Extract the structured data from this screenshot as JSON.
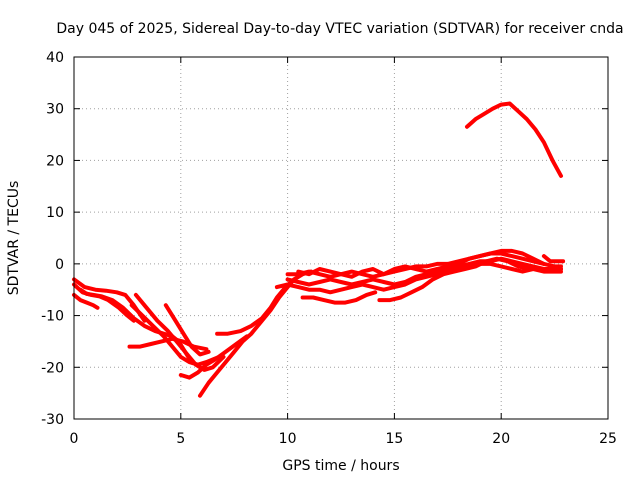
{
  "chart_data": {
    "type": "line",
    "title": "Day 045 of 2025, Sidereal Day-to-day VTEC variation (SDTVAR) for receiver cnda",
    "xlabel": "GPS time / hours",
    "ylabel": "SDTVAR / TECUs",
    "xlim": [
      0,
      25
    ],
    "ylim": [
      -30,
      40
    ],
    "xticks": [
      0,
      5,
      10,
      15,
      20,
      25
    ],
    "yticks": [
      -30,
      -20,
      -10,
      0,
      10,
      20,
      30,
      40
    ],
    "grid": true,
    "line_color": "#ff0000",
    "series": [
      {
        "name": "trace-a",
        "x": [
          0,
          0.5,
          1,
          1.5,
          2,
          2.4,
          2.8,
          3.3
        ],
        "y": [
          -3,
          -4.5,
          -5,
          -5.2,
          -5.5,
          -6,
          -8,
          -11
        ]
      },
      {
        "name": "trace-b",
        "x": [
          0,
          0.4,
          0.8,
          1.2,
          1.6,
          2.1,
          2.5,
          2.8
        ],
        "y": [
          -4,
          -5.5,
          -6,
          -6.3,
          -7,
          -8.5,
          -10,
          -11
        ]
      },
      {
        "name": "trace-c",
        "x": [
          0,
          0.3,
          0.6,
          0.9,
          1.1
        ],
        "y": [
          -6,
          -7,
          -7.5,
          -8,
          -8.5
        ]
      },
      {
        "name": "trace-d",
        "x": [
          0.3,
          0.6,
          0.9,
          1.3,
          1.8,
          2.3,
          2.8,
          3.3,
          3.8,
          4.2,
          4.6,
          4.9,
          5.2,
          5.5
        ],
        "y": [
          -5,
          -5.8,
          -6,
          -6.3,
          -7,
          -8.5,
          -10.5,
          -12,
          -13,
          -13.5,
          -14,
          -15,
          -17,
          -19
        ]
      },
      {
        "name": "trace-e",
        "x": [
          2.9,
          3.4,
          3.9,
          4.4,
          4.9,
          5.3,
          5.7,
          6.1,
          6.5,
          7.0
        ],
        "y": [
          -6,
          -8.5,
          -11,
          -13,
          -15.5,
          -17.5,
          -19.5,
          -20.5,
          -20,
          -18
        ]
      },
      {
        "name": "trace-f",
        "x": [
          2.7,
          3.2,
          3.7,
          4.2,
          4.6,
          5.0,
          5.4,
          5.8,
          6.2,
          6.8
        ],
        "y": [
          -8,
          -10,
          -12,
          -14,
          -16,
          -18,
          -19,
          -19.5,
          -19,
          -18
        ]
      },
      {
        "name": "trace-g",
        "x": [
          2.6,
          3.1,
          3.6,
          4.1,
          4.6,
          5.1,
          5.6,
          6.2
        ],
        "y": [
          -16,
          -16,
          -15.5,
          -15,
          -14.5,
          -15,
          -16,
          -16.5
        ]
      },
      {
        "name": "trace-h",
        "x": [
          4.3,
          4.6,
          4.9,
          5.2,
          5.5,
          5.9,
          6.3
        ],
        "y": [
          -8,
          -10,
          -12,
          -14,
          -16,
          -17.5,
          -17
        ]
      },
      {
        "name": "trace-i",
        "x": [
          5.0,
          5.4,
          5.8,
          6.2,
          6.6,
          7.1,
          7.6,
          8.1
        ],
        "y": [
          -21.5,
          -22,
          -21,
          -19.5,
          -18.5,
          -17,
          -15.5,
          -14
        ]
      },
      {
        "name": "trace-j",
        "x": [
          5.9,
          6.3,
          6.7,
          7.1,
          7.5,
          7.9,
          8.3,
          8.7,
          9.2,
          9.6,
          10.0,
          10.3,
          10.7
        ],
        "y": [
          -25.5,
          -23,
          -21,
          -19,
          -17,
          -15,
          -13.5,
          -11.5,
          -9,
          -6.5,
          -4.5,
          -3,
          -2
        ]
      },
      {
        "name": "trace-k",
        "x": [
          6.7,
          7.2,
          7.8,
          8.3,
          8.8,
          9.2,
          9.5,
          9.9,
          10.3,
          10.7,
          11.1
        ],
        "y": [
          -13.5,
          -13.5,
          -13,
          -12,
          -10.5,
          -8.5,
          -6.5,
          -4.5,
          -3,
          -2,
          -1.5
        ]
      },
      {
        "name": "trace-l",
        "x": [
          10.7,
          11.2,
          11.7,
          12.2,
          12.7,
          13.2,
          13.7,
          14.1
        ],
        "y": [
          -6.5,
          -6.5,
          -7,
          -7.5,
          -7.5,
          -7,
          -6,
          -5.5
        ]
      },
      {
        "name": "trace-m",
        "x": [
          10.0,
          10.5,
          11.0,
          11.5,
          12.0,
          12.5,
          13.0,
          13.5,
          14.0,
          14.5,
          15.0,
          15.5,
          16.0,
          16.5,
          17.0,
          17.5,
          18.0,
          18.5,
          19.0,
          19.5,
          20.0,
          20.5,
          21.0,
          21.5,
          22.0,
          22.5,
          22.8
        ],
        "y": [
          -3,
          -3.5,
          -4,
          -3.5,
          -3,
          -3.5,
          -4,
          -3.5,
          -3,
          -3.5,
          -4,
          -3.5,
          -2.5,
          -2,
          -1.5,
          -1,
          -0.5,
          0,
          0.5,
          0.5,
          1,
          0.5,
          0,
          -0.5,
          -1,
          -1,
          -1
        ]
      },
      {
        "name": "trace-n",
        "x": [
          10.0,
          10.5,
          11.0,
          11.5,
          12.0,
          12.5,
          13.0,
          13.5,
          14.0,
          14.5,
          15.0,
          15.5,
          16.0,
          16.5,
          17.0,
          17.5,
          18.0,
          18.5,
          19.0,
          19.5,
          20.0,
          20.5,
          21.0,
          21.5,
          22.0,
          22.5,
          22.8
        ],
        "y": [
          -2,
          -2,
          -1.5,
          -2,
          -2.5,
          -2,
          -1.5,
          -2,
          -2.5,
          -2,
          -1.5,
          -1,
          -0.5,
          -0.5,
          0,
          0,
          0.5,
          1,
          1.5,
          2,
          2,
          1.5,
          1,
          0.5,
          0,
          -0.5,
          -0.5
        ]
      },
      {
        "name": "trace-o",
        "x": [
          9.5,
          10.0,
          10.5,
          11.0,
          11.5,
          12.0,
          12.5,
          13.0,
          13.5,
          14.0,
          14.5,
          15.0,
          15.5,
          16.0,
          16.5,
          17.0,
          17.5,
          18.0,
          18.5,
          19.0,
          19.5,
          20.0,
          20.5,
          21.0,
          21.5,
          22.0,
          22.5,
          22.8
        ],
        "y": [
          -4.5,
          -4,
          -4.5,
          -5,
          -5,
          -5.5,
          -5,
          -4.5,
          -4,
          -4.5,
          -5,
          -4.5,
          -4,
          -3,
          -2.5,
          -2,
          -1.5,
          -1,
          -0.5,
          0,
          0,
          -0.5,
          -1,
          -1.5,
          -1,
          -1.5,
          -1.5,
          -1.5
        ]
      },
      {
        "name": "trace-p",
        "x": [
          10.5,
          11.0,
          11.5,
          12.0,
          12.5,
          13.0,
          13.5,
          14.0,
          14.5,
          15.0,
          15.5,
          16.0,
          16.5,
          17.0,
          17.5,
          18.0,
          18.5,
          19.0,
          19.5,
          20.0,
          20.5,
          21.0,
          21.5,
          22.0
        ],
        "y": [
          -1.5,
          -2,
          -1,
          -1.5,
          -2,
          -2.5,
          -1.5,
          -1,
          -2,
          -1,
          -0.5,
          -1,
          -1.5,
          -1,
          -0.5,
          0,
          1,
          1.5,
          2,
          2.5,
          2.5,
          2,
          1,
          0
        ]
      },
      {
        "name": "trace-q",
        "x": [
          14.3,
          14.8,
          15.3,
          15.8,
          16.3,
          16.8,
          17.3,
          17.8,
          18.3,
          18.8,
          19.3,
          19.8,
          20.3,
          20.8,
          21.3,
          21.8,
          22.3,
          22.8
        ],
        "y": [
          -7,
          -7,
          -6.5,
          -5.5,
          -4.5,
          -3,
          -2,
          -1.5,
          -1,
          -0.5,
          0.5,
          1,
          0.5,
          -0.5,
          -1,
          -1,
          -1,
          -1
        ]
      },
      {
        "name": "trace-r",
        "x": [
          22.0,
          22.3,
          22.6,
          22.9
        ],
        "y": [
          1.5,
          0.5,
          0.5,
          0.5
        ]
      },
      {
        "name": "trace-s",
        "x": [
          18.4,
          18.8,
          19.2,
          19.6,
          20.0,
          20.4,
          20.8,
          21.2,
          21.6,
          22.0,
          22.4,
          22.8
        ],
        "y": [
          26.5,
          28,
          29,
          30,
          30.8,
          31,
          29.5,
          28,
          26,
          23.5,
          20,
          17
        ]
      }
    ]
  }
}
